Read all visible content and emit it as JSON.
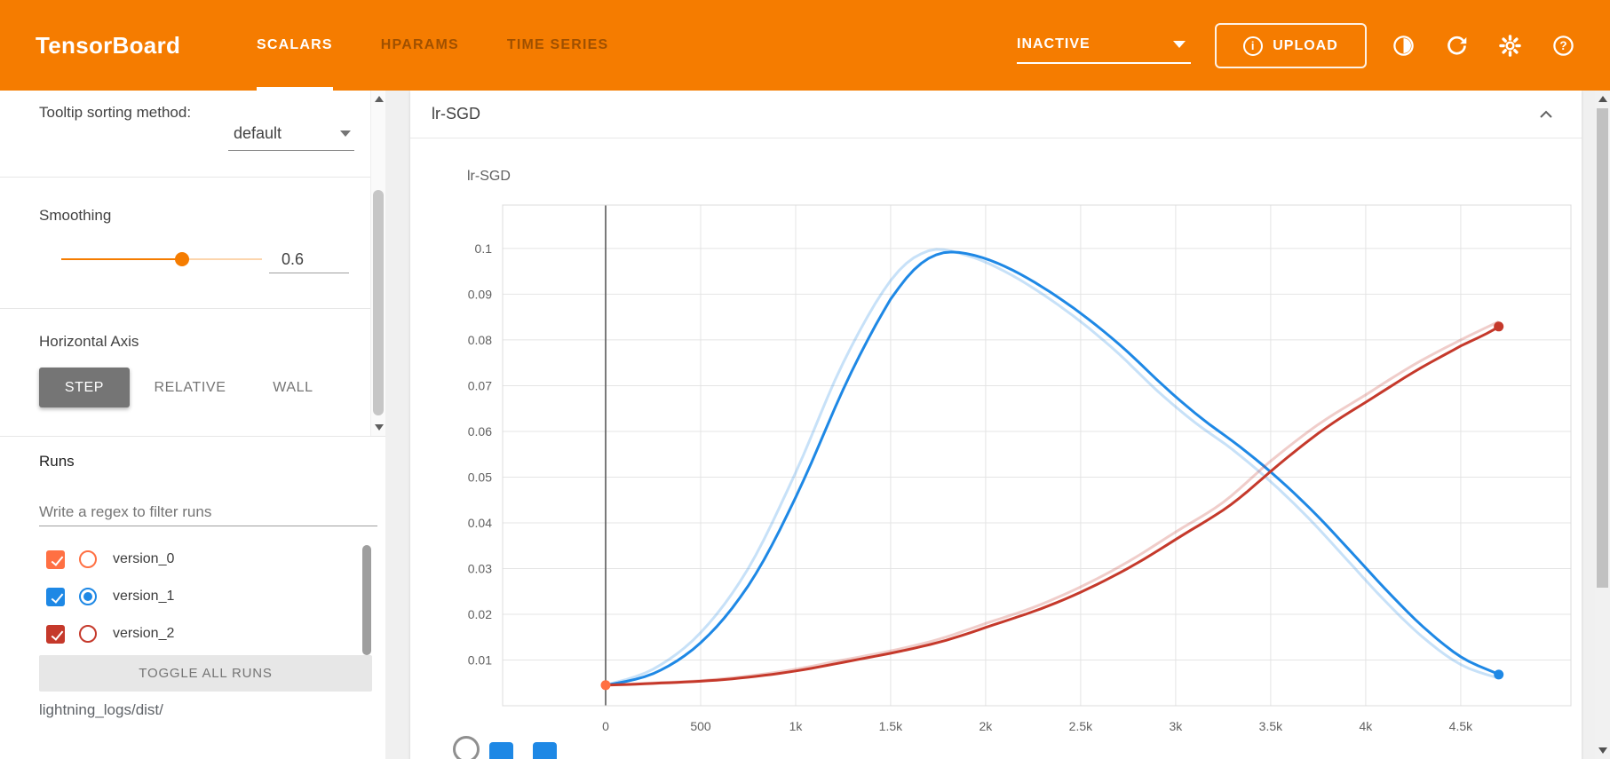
{
  "header": {
    "logo": "TensorBoard",
    "brand_color": "#f57c00",
    "tabs": [
      {
        "label": "SCALARS",
        "active": true
      },
      {
        "label": "HPARAMS",
        "active": false
      },
      {
        "label": "TIME SERIES",
        "active": false
      }
    ],
    "status_dropdown": {
      "value": "INACTIVE"
    },
    "upload_button": "UPLOAD",
    "icons": [
      "contrast-icon",
      "refresh-icon",
      "settings-icon",
      "help-icon"
    ]
  },
  "sidebar": {
    "tooltip_sorting": {
      "label": "Tooltip sorting method:",
      "value": "default"
    },
    "smoothing": {
      "label": "Smoothing",
      "value": "0.6",
      "fraction": 0.6
    },
    "horizontal_axis": {
      "label": "Horizontal Axis",
      "options": [
        "STEP",
        "RELATIVE",
        "WALL"
      ],
      "selected": "STEP"
    },
    "runs": {
      "label": "Runs",
      "filter_placeholder": "Write a regex to filter runs",
      "items": [
        {
          "name": "version_0",
          "checked": true,
          "radio_selected": false,
          "color": "#ff7043"
        },
        {
          "name": "version_1",
          "checked": true,
          "radio_selected": true,
          "color": "#1e88e5"
        },
        {
          "name": "version_2",
          "checked": true,
          "radio_selected": false,
          "color": "#c5392b"
        }
      ],
      "toggle_all": "TOGGLE ALL RUNS",
      "log_dir": "lightning_logs/dist/"
    }
  },
  "main": {
    "card_title": "lr-SGD"
  },
  "chart_data": {
    "type": "line",
    "title": "lr-SGD",
    "xlabel": "",
    "ylabel": "",
    "xlim": [
      -542,
      5080
    ],
    "ylim": [
      0,
      0.1095
    ],
    "grid": true,
    "legend_position": "none",
    "smoothing": 0.6,
    "x_ticks": [
      {
        "v": 0,
        "label": "0"
      },
      {
        "v": 500,
        "label": "500"
      },
      {
        "v": 1000,
        "label": "1k"
      },
      {
        "v": 1500,
        "label": "1.5k"
      },
      {
        "v": 2000,
        "label": "2k"
      },
      {
        "v": 2500,
        "label": "2.5k"
      },
      {
        "v": 3000,
        "label": "3k"
      },
      {
        "v": 3500,
        "label": "3.5k"
      },
      {
        "v": 4000,
        "label": "4k"
      },
      {
        "v": 4500,
        "label": "4.5k"
      }
    ],
    "y_ticks": [
      {
        "v": 0.01,
        "label": "0.01"
      },
      {
        "v": 0.02,
        "label": "0.02"
      },
      {
        "v": 0.03,
        "label": "0.03"
      },
      {
        "v": 0.04,
        "label": "0.04"
      },
      {
        "v": 0.05,
        "label": "0.05"
      },
      {
        "v": 0.06,
        "label": "0.06"
      },
      {
        "v": 0.07,
        "label": "0.07"
      },
      {
        "v": 0.08,
        "label": "0.08"
      },
      {
        "v": 0.09,
        "label": "0.09"
      },
      {
        "v": 0.1,
        "label": "0.1"
      }
    ],
    "series": [
      {
        "name": "version_1",
        "color": "#1e88e5",
        "points": [
          [
            0,
            0.0045
          ],
          [
            250,
            0.008
          ],
          [
            500,
            0.016
          ],
          [
            750,
            0.03
          ],
          [
            1000,
            0.051
          ],
          [
            1250,
            0.075
          ],
          [
            1500,
            0.093
          ],
          [
            1700,
            0.0995
          ],
          [
            1900,
            0.0985
          ],
          [
            2100,
            0.095
          ],
          [
            2300,
            0.09
          ],
          [
            2500,
            0.084
          ],
          [
            2700,
            0.077
          ],
          [
            2900,
            0.069
          ],
          [
            3100,
            0.062
          ],
          [
            3300,
            0.056
          ],
          [
            3500,
            0.049
          ],
          [
            3700,
            0.041
          ],
          [
            3900,
            0.032
          ],
          [
            4100,
            0.023
          ],
          [
            4300,
            0.015
          ],
          [
            4500,
            0.009
          ],
          [
            4700,
            0.006
          ]
        ]
      },
      {
        "name": "version_2",
        "color": "#c5392b",
        "points": [
          [
            0,
            0.0045
          ],
          [
            250,
            0.005
          ],
          [
            500,
            0.0055
          ],
          [
            750,
            0.0065
          ],
          [
            1000,
            0.008
          ],
          [
            1250,
            0.01
          ],
          [
            1500,
            0.012
          ],
          [
            1750,
            0.0145
          ],
          [
            2000,
            0.018
          ],
          [
            2250,
            0.0215
          ],
          [
            2500,
            0.026
          ],
          [
            2750,
            0.0315
          ],
          [
            3000,
            0.038
          ],
          [
            3250,
            0.0445
          ],
          [
            3500,
            0.0535
          ],
          [
            3750,
            0.0615
          ],
          [
            4000,
            0.068
          ],
          [
            4250,
            0.0745
          ],
          [
            4500,
            0.08
          ],
          [
            4700,
            0.084
          ]
        ]
      },
      {
        "name": "version_0",
        "color": "#ff7043",
        "points": [
          [
            0,
            0.0045
          ]
        ]
      }
    ]
  }
}
